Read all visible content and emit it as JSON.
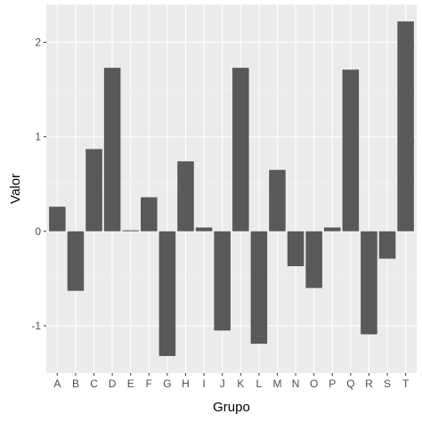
{
  "chart_data": {
    "type": "bar",
    "xlabel": "Grupo",
    "ylabel": "Valor",
    "categories": [
      "A",
      "B",
      "C",
      "D",
      "E",
      "F",
      "G",
      "H",
      "I",
      "J",
      "K",
      "L",
      "M",
      "N",
      "O",
      "P",
      "Q",
      "R",
      "S",
      "T"
    ],
    "values": [
      0.26,
      -0.63,
      0.87,
      1.73,
      0.01,
      0.36,
      -1.32,
      0.74,
      0.04,
      -1.05,
      1.73,
      -1.19,
      0.65,
      -0.37,
      -0.6,
      0.04,
      1.71,
      -1.09,
      -0.29,
      2.22
    ],
    "yticks": [
      -1,
      0,
      1,
      2
    ],
    "ytick_labels": [
      "-1",
      "0",
      "1",
      "2"
    ],
    "ylim": [
      -1.5,
      2.4
    ],
    "grid": true,
    "colors": {
      "bar": "#595959",
      "panel": "#ebebeb",
      "grid_major": "#ffffff",
      "grid_minor": "#f5f5f5",
      "tick": "#333333"
    }
  }
}
